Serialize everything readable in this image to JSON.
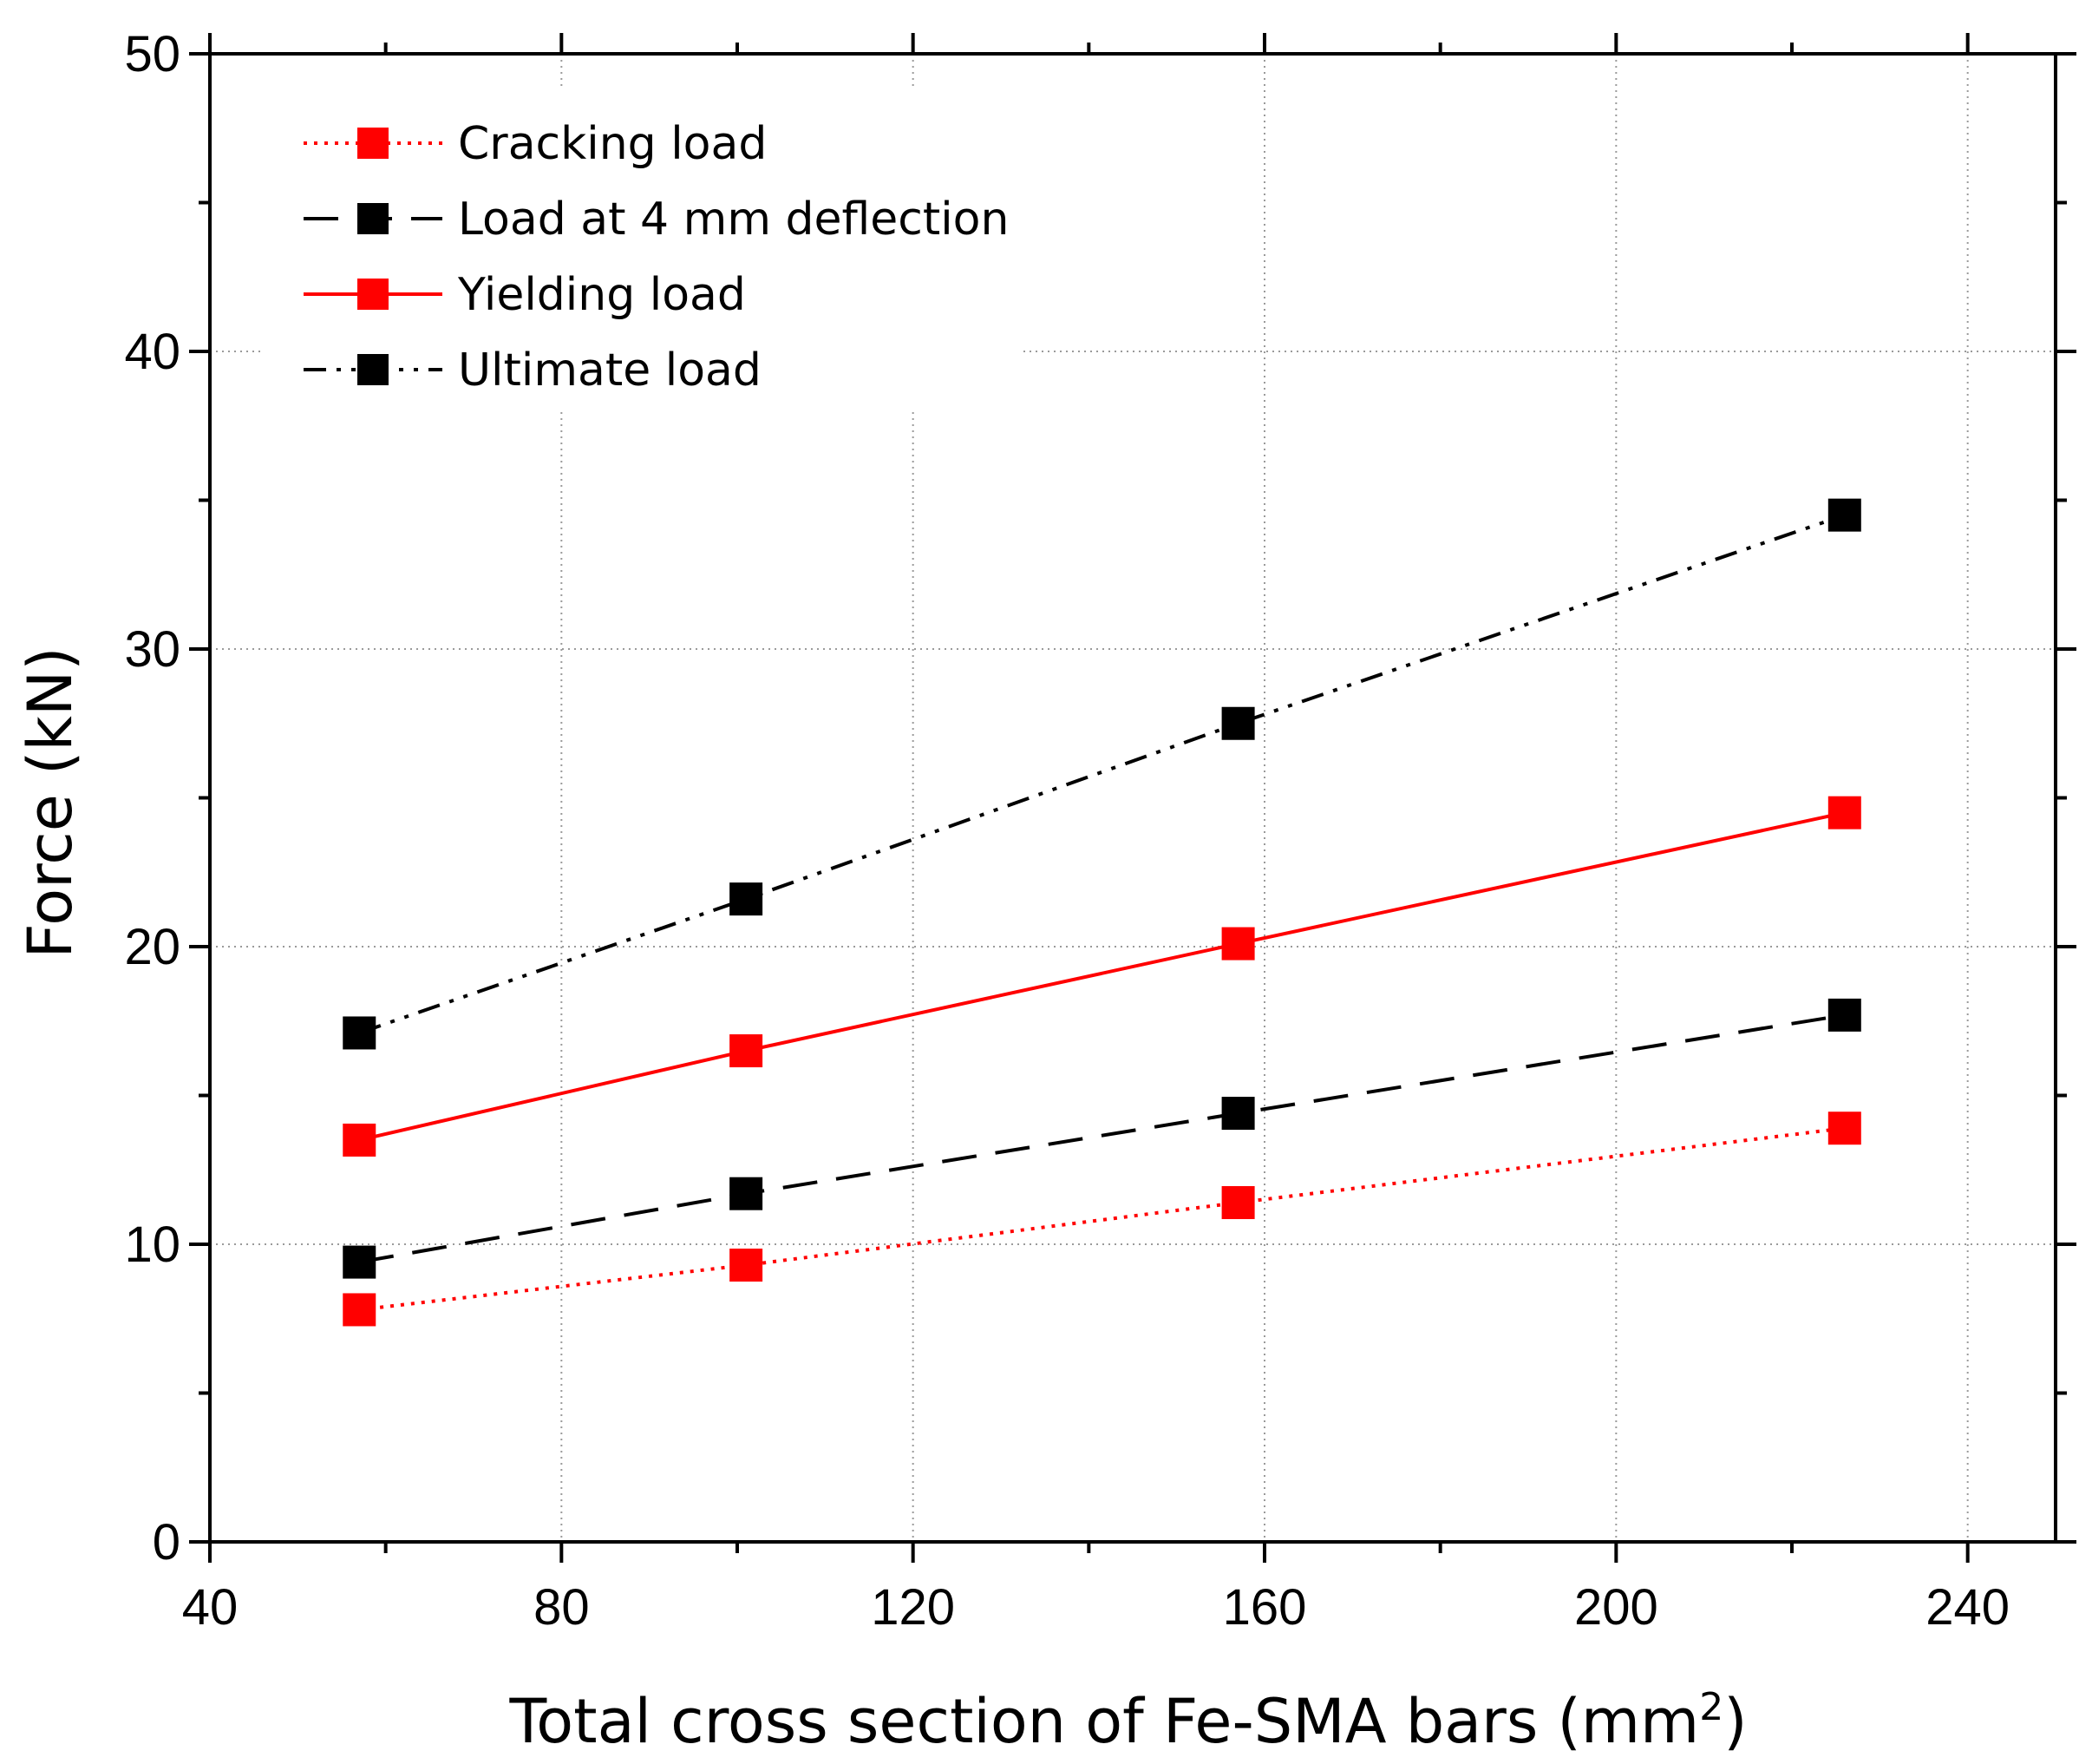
{
  "chart_data": {
    "type": "line",
    "xlabel": "Total cross section of Fe-SMA bars (mm",
    "xlabel_sup": "2",
    "xlabel_end": ")",
    "ylabel": "Force (kN)",
    "xlim": [
      40,
      250
    ],
    "ylim": [
      0,
      50
    ],
    "xticks": [
      40,
      80,
      120,
      160,
      200,
      240
    ],
    "yticks": [
      0,
      10,
      20,
      30,
      40,
      50
    ],
    "grid": true,
    "legend_position": "top-left",
    "x": [
      57,
      101,
      157,
      226
    ],
    "series": [
      {
        "name": "Cracking load",
        "values": [
          7.8,
          9.3,
          11.4,
          13.9
        ],
        "color": "#ff0000",
        "line_style": "dotted"
      },
      {
        "name": "Load at 4 mm deflection",
        "values": [
          9.4,
          11.7,
          14.4,
          17.7
        ],
        "color": "#000000",
        "line_style": "dashed"
      },
      {
        "name": "Yielding load",
        "values": [
          13.5,
          16.5,
          20.1,
          24.5
        ],
        "color": "#ff0000",
        "line_style": "solid"
      },
      {
        "name": "Ultimate load",
        "values": [
          17.1,
          21.6,
          27.5,
          34.5
        ],
        "color": "#000000",
        "line_style": "dash-dot-dot"
      }
    ]
  }
}
